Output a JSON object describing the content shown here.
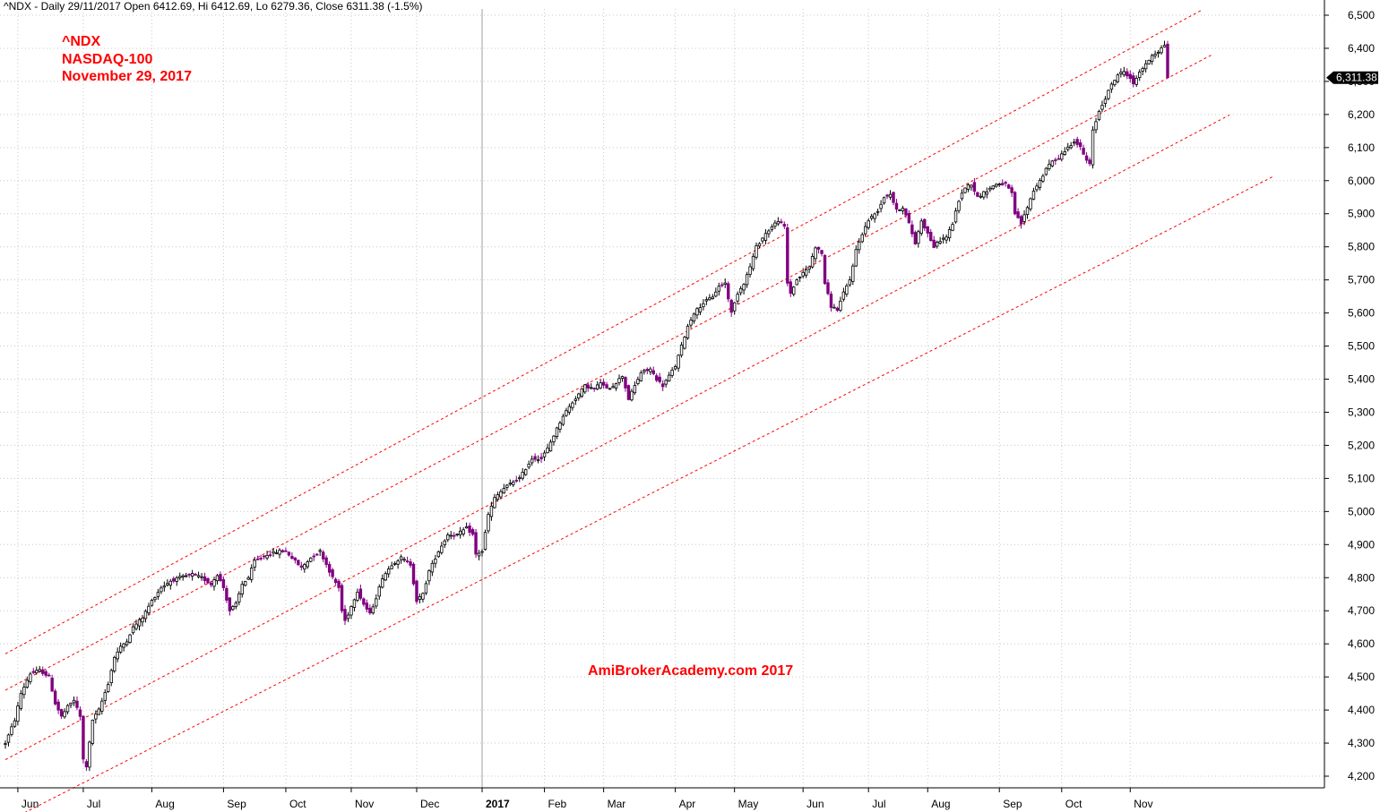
{
  "header": {
    "text": "^NDX - Daily 29/11/2017 Open 6412.69, Hi 6412.69, Lo 6279.36, Close 6311.38 (-1.5%)"
  },
  "annotation": {
    "symbol": "^NDX",
    "name": "NASDAQ-100",
    "date": "November 29, 2017"
  },
  "watermark": "AmiBrokerAcademy.com  2017",
  "colors": {
    "background": "#ffffff",
    "grid": "#c8c8c8",
    "channel": "#ff0000",
    "up_candle": "#000000",
    "down_candle": "#800080",
    "annotation": "#ff0000"
  },
  "chart_data": {
    "type": "candlestick",
    "y_axis": {
      "position": "right",
      "range": [
        4160,
        6520
      ],
      "ticks": [
        4200,
        4300,
        4400,
        4500,
        4600,
        4700,
        4800,
        4900,
        5000,
        5100,
        5200,
        5300,
        5400,
        5500,
        5600,
        5700,
        5800,
        5900,
        6000,
        6100,
        6200,
        6300,
        6400,
        6500
      ],
      "tick_labels": [
        "4,200",
        "4,300",
        "4,400",
        "4,500",
        "4,600",
        "4,700",
        "4,800",
        "4,900",
        "5,000",
        "5,100",
        "5,200",
        "5,300",
        "5,400",
        "5,500",
        "5,600",
        "5,700",
        "5,800",
        "5,900",
        "6,000",
        "6,100",
        "6,200",
        "6,300",
        "6,400",
        "6,500"
      ]
    },
    "last_price_label": "6,311.38",
    "last_price": 6311.38,
    "x_axis": {
      "labels": [
        {
          "text": "Jun",
          "bar": 4
        },
        {
          "text": "Jul",
          "bar": 25
        },
        {
          "text": "Aug",
          "bar": 47
        },
        {
          "text": "Sep",
          "bar": 70
        },
        {
          "text": "Oct",
          "bar": 90
        },
        {
          "text": "Nov",
          "bar": 111
        },
        {
          "text": "Dec",
          "bar": 132
        },
        {
          "text": "2017",
          "bar": 153,
          "bold": true
        },
        {
          "text": "Feb",
          "bar": 173
        },
        {
          "text": "Mar",
          "bar": 192
        },
        {
          "text": "Apr",
          "bar": 215
        },
        {
          "text": "May",
          "bar": 234
        },
        {
          "text": "Jun",
          "bar": 256
        },
        {
          "text": "Jul",
          "bar": 277
        },
        {
          "text": "Aug",
          "bar": 296
        },
        {
          "text": "Sep",
          "bar": 319
        },
        {
          "text": "Oct",
          "bar": 339
        },
        {
          "text": "Nov",
          "bar": 361
        }
      ]
    },
    "close_anchors": [
      [
        0,
        4300
      ],
      [
        3,
        4370
      ],
      [
        5,
        4450
      ],
      [
        8,
        4510
      ],
      [
        11,
        4520
      ],
      [
        14,
        4500
      ],
      [
        16,
        4420
      ],
      [
        18,
        4380
      ],
      [
        20,
        4410
      ],
      [
        22,
        4430
      ],
      [
        24,
        4380
      ],
      [
        25,
        4250
      ],
      [
        26,
        4230
      ],
      [
        28,
        4370
      ],
      [
        30,
        4400
      ],
      [
        33,
        4480
      ],
      [
        35,
        4560
      ],
      [
        37,
        4590
      ],
      [
        39,
        4610
      ],
      [
        41,
        4650
      ],
      [
        44,
        4680
      ],
      [
        47,
        4730
      ],
      [
        50,
        4770
      ],
      [
        53,
        4790
      ],
      [
        56,
        4800
      ],
      [
        60,
        4810
      ],
      [
        63,
        4800
      ],
      [
        66,
        4780
      ],
      [
        68,
        4810
      ],
      [
        70,
        4770
      ],
      [
        72,
        4700
      ],
      [
        74,
        4720
      ],
      [
        76,
        4780
      ],
      [
        78,
        4800
      ],
      [
        80,
        4850
      ],
      [
        84,
        4870
      ],
      [
        88,
        4880
      ],
      [
        90,
        4880
      ],
      [
        92,
        4860
      ],
      [
        95,
        4830
      ],
      [
        98,
        4860
      ],
      [
        101,
        4880
      ],
      [
        103,
        4840
      ],
      [
        105,
        4800
      ],
      [
        107,
        4770
      ],
      [
        108,
        4700
      ],
      [
        109,
        4670
      ],
      [
        110,
        4690
      ],
      [
        113,
        4760
      ],
      [
        115,
        4720
      ],
      [
        117,
        4690
      ],
      [
        119,
        4740
      ],
      [
        121,
        4800
      ],
      [
        124,
        4840
      ],
      [
        127,
        4860
      ],
      [
        130,
        4840
      ],
      [
        132,
        4730
      ],
      [
        134,
        4750
      ],
      [
        136,
        4820
      ],
      [
        139,
        4880
      ],
      [
        142,
        4930
      ],
      [
        145,
        4930
      ],
      [
        148,
        4950
      ],
      [
        150,
        4930
      ],
      [
        151,
        4870
      ],
      [
        153,
        4880
      ],
      [
        155,
        4990
      ],
      [
        157,
        5040
      ],
      [
        160,
        5070
      ],
      [
        163,
        5090
      ],
      [
        165,
        5100
      ],
      [
        167,
        5130
      ],
      [
        169,
        5160
      ],
      [
        172,
        5160
      ],
      [
        174,
        5190
      ],
      [
        176,
        5230
      ],
      [
        179,
        5290
      ],
      [
        182,
        5330
      ],
      [
        186,
        5380
      ],
      [
        189,
        5370
      ],
      [
        191,
        5390
      ],
      [
        193,
        5370
      ],
      [
        195,
        5380
      ],
      [
        198,
        5410
      ],
      [
        200,
        5340
      ],
      [
        202,
        5380
      ],
      [
        204,
        5420
      ],
      [
        207,
        5430
      ],
      [
        209,
        5400
      ],
      [
        211,
        5380
      ],
      [
        213,
        5410
      ],
      [
        215,
        5440
      ],
      [
        217,
        5500
      ],
      [
        219,
        5560
      ],
      [
        221,
        5600
      ],
      [
        224,
        5630
      ],
      [
        227,
        5650
      ],
      [
        229,
        5680
      ],
      [
        231,
        5690
      ],
      [
        233,
        5600
      ],
      [
        235,
        5660
      ],
      [
        237,
        5690
      ],
      [
        239,
        5740
      ],
      [
        241,
        5800
      ],
      [
        244,
        5840
      ],
      [
        246,
        5860
      ],
      [
        248,
        5880
      ],
      [
        250,
        5860
      ],
      [
        251,
        5690
      ],
      [
        252,
        5660
      ],
      [
        254,
        5700
      ],
      [
        256,
        5720
      ],
      [
        258,
        5740
      ],
      [
        260,
        5800
      ],
      [
        262,
        5780
      ],
      [
        263,
        5690
      ],
      [
        265,
        5620
      ],
      [
        267,
        5610
      ],
      [
        269,
        5660
      ],
      [
        271,
        5700
      ],
      [
        273,
        5790
      ],
      [
        275,
        5840
      ],
      [
        277,
        5880
      ],
      [
        280,
        5910
      ],
      [
        282,
        5950
      ],
      [
        284,
        5960
      ],
      [
        286,
        5910
      ],
      [
        288,
        5920
      ],
      [
        290,
        5870
      ],
      [
        292,
        5810
      ],
      [
        294,
        5880
      ],
      [
        296,
        5840
      ],
      [
        298,
        5800
      ],
      [
        300,
        5820
      ],
      [
        302,
        5830
      ],
      [
        304,
        5870
      ],
      [
        306,
        5940
      ],
      [
        308,
        5980
      ],
      [
        310,
        5990
      ],
      [
        312,
        5950
      ],
      [
        315,
        5970
      ],
      [
        318,
        5990
      ],
      [
        321,
        5990
      ],
      [
        323,
        5960
      ],
      [
        324,
        5900
      ],
      [
        326,
        5870
      ],
      [
        328,
        5920
      ],
      [
        330,
        5970
      ],
      [
        332,
        6000
      ],
      [
        335,
        6050
      ],
      [
        338,
        6070
      ],
      [
        341,
        6100
      ],
      [
        343,
        6120
      ],
      [
        345,
        6100
      ],
      [
        347,
        6060
      ],
      [
        348,
        6050
      ],
      [
        349,
        6150
      ],
      [
        351,
        6210
      ],
      [
        353,
        6250
      ],
      [
        355,
        6290
      ],
      [
        357,
        6320
      ],
      [
        359,
        6330
      ],
      [
        361,
        6310
      ],
      [
        362,
        6290
      ],
      [
        364,
        6330
      ],
      [
        366,
        6350
      ],
      [
        368,
        6380
      ],
      [
        370,
        6390
      ],
      [
        372,
        6410
      ],
      [
        373,
        6311.38
      ]
    ],
    "trend_channel": [
      {
        "x0": 0,
        "y0": 4570,
        "x1": 373,
        "y1": 6460
      },
      {
        "x0": 0,
        "y0": 4460,
        "x1": 373,
        "y1": 6310
      },
      {
        "x0": 0,
        "y0": 4250,
        "x1": 373,
        "y1": 6100
      },
      {
        "x0": 0,
        "y0": 4060,
        "x1": 373,
        "y1": 5850
      }
    ]
  }
}
